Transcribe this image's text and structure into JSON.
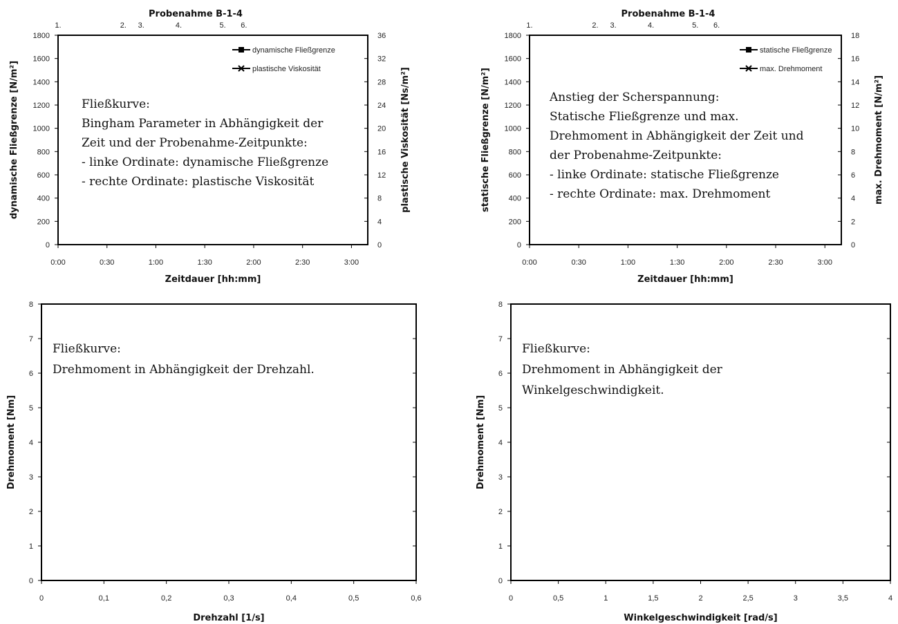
{
  "chart_data": [
    {
      "id": "c1",
      "type": "line",
      "title": "Probenahme B-1-4",
      "xlabel": "Zeitdauer [hh:mm]",
      "ylabel": "dynamische Fließgrenze [N/m²]",
      "y2label": "plastische Viskosität [Ns/m²]",
      "x_ticks": [
        "0:00",
        "0:30",
        "1:00",
        "1:30",
        "2:00",
        "2:30",
        "3:00"
      ],
      "x_tick_values": [
        0,
        30,
        60,
        90,
        120,
        150,
        180
      ],
      "xlim": [
        0,
        190
      ],
      "ylim": [
        0,
        1800
      ],
      "y_ticks": [
        0,
        200,
        400,
        600,
        800,
        1000,
        1200,
        1400,
        1600,
        1800
      ],
      "y2lim": [
        0,
        36
      ],
      "y2_ticks": [
        0,
        4,
        8,
        12,
        16,
        20,
        24,
        28,
        32,
        36
      ],
      "sampling_marks": [
        {
          "label": "1.",
          "x": 0
        },
        {
          "label": "2.",
          "x": 40
        },
        {
          "label": "3.",
          "x": 51
        },
        {
          "label": "4.",
          "x": 74
        },
        {
          "label": "5.",
          "x": 101
        },
        {
          "label": "6.",
          "x": 114
        }
      ],
      "series": [
        {
          "name": "dynamische Fließgrenze",
          "marker": "square",
          "values": []
        },
        {
          "name": "plastische Viskosität",
          "marker": "x",
          "values": []
        }
      ],
      "legend": "top-right",
      "annotation": [
        "Fließkurve:",
        "Bingham Parameter in Abhängigkeit der",
        "Zeit und der Probenahme-Zeitpunkte:",
        "- linke Ordinate: dynamische Fließgrenze",
        "- rechte Ordinate: plastische Viskosität"
      ]
    },
    {
      "id": "c2",
      "type": "line",
      "title": "Probenahme B-1-4",
      "xlabel": "Zeitdauer [hh:mm]",
      "ylabel": "statische Fließgrenze [N/m²]",
      "y2label": "max. Drehmoment [N/m²]",
      "x_ticks": [
        "0:00",
        "0:30",
        "1:00",
        "1:30",
        "2:00",
        "2:30",
        "3:00"
      ],
      "x_tick_values": [
        0,
        30,
        60,
        90,
        120,
        150,
        180
      ],
      "xlim": [
        0,
        190
      ],
      "ylim": [
        0,
        1800
      ],
      "y_ticks": [
        0,
        200,
        400,
        600,
        800,
        1000,
        1200,
        1400,
        1600,
        1800
      ],
      "y2lim": [
        0,
        18
      ],
      "y2_ticks": [
        0,
        2,
        4,
        6,
        8,
        10,
        12,
        14,
        16,
        18
      ],
      "sampling_marks": [
        {
          "label": "1.",
          "x": 0
        },
        {
          "label": "2.",
          "x": 40
        },
        {
          "label": "3.",
          "x": 51
        },
        {
          "label": "4.",
          "x": 74
        },
        {
          "label": "5.",
          "x": 101
        },
        {
          "label": "6.",
          "x": 114
        }
      ],
      "series": [
        {
          "name": "statische Fließgrenze",
          "marker": "square",
          "values": []
        },
        {
          "name": "max. Drehmoment",
          "marker": "x",
          "values": []
        }
      ],
      "legend": "top-right",
      "annotation": [
        "Anstieg der Scherspannung:",
        "Statische Fließgrenze und max.",
        "Drehmoment in Abhängigkeit der Zeit und",
        "der Probenahme-Zeitpunkte:",
        "- linke Ordinate: statische Fließgrenze",
        "- rechte Ordinate: max. Drehmoment"
      ]
    },
    {
      "id": "c3",
      "type": "scatter",
      "title": "",
      "xlabel": "Drehzahl [1/s]",
      "ylabel": "Drehmoment [Nm]",
      "x_ticks": [
        "0",
        "0,1",
        "0,2",
        "0,3",
        "0,4",
        "0,5",
        "0,6"
      ],
      "x_tick_values": [
        0,
        0.1,
        0.2,
        0.3,
        0.4,
        0.5,
        0.6
      ],
      "xlim": [
        0,
        0.6
      ],
      "ylim": [
        0,
        8
      ],
      "y_ticks": [
        0,
        1,
        2,
        3,
        4,
        5,
        6,
        7,
        8
      ],
      "series": [],
      "annotation": [
        "Fließkurve:",
        "Drehmoment in Abhängigkeit der Drehzahl."
      ]
    },
    {
      "id": "c4",
      "type": "scatter",
      "title": "",
      "xlabel": "Winkelgeschwindigkeit [rad/s]",
      "ylabel": "Drehmoment [Nm]",
      "x_ticks": [
        "0",
        "0,5",
        "1",
        "1,5",
        "2",
        "2,5",
        "3",
        "3,5",
        "4"
      ],
      "x_tick_values": [
        0,
        0.5,
        1,
        1.5,
        2,
        2.5,
        3,
        3.5,
        4
      ],
      "xlim": [
        0,
        4
      ],
      "ylim": [
        0,
        8
      ],
      "y_ticks": [
        0,
        1,
        2,
        3,
        4,
        5,
        6,
        7,
        8
      ],
      "series": [],
      "annotation": [
        "Fließkurve:",
        "Drehmoment in Abhängigkeit der",
        "Winkelgeschwindigkeit."
      ]
    }
  ]
}
